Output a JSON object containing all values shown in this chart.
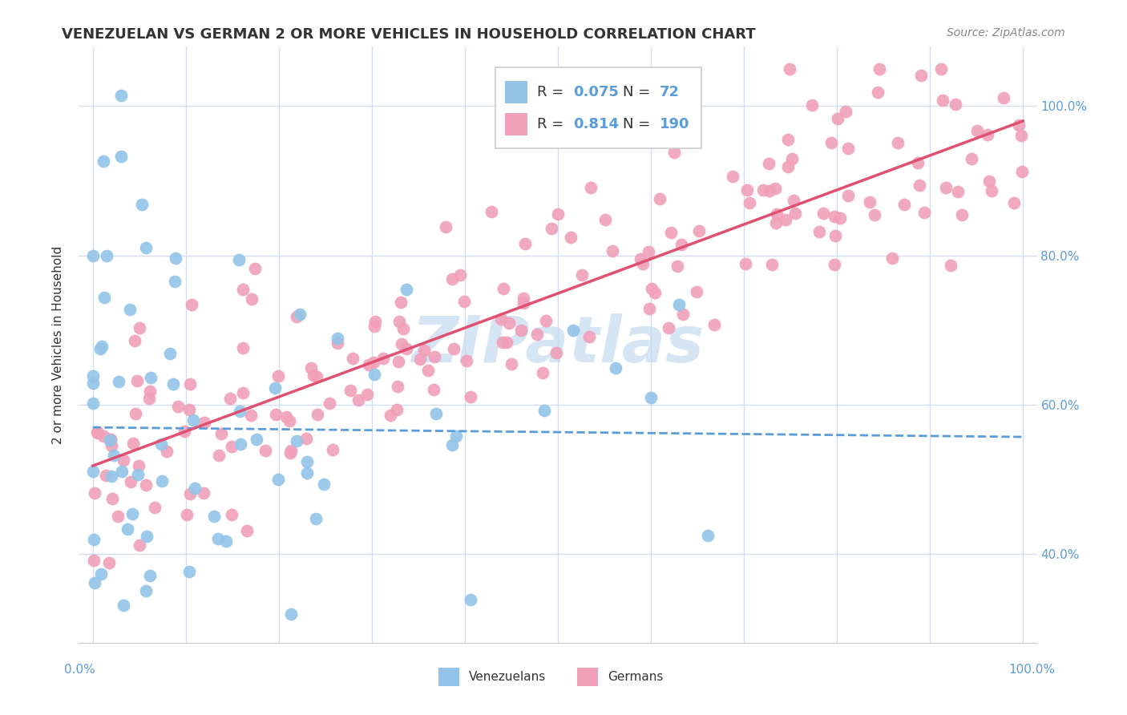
{
  "title": "VENEZUELAN VS GERMAN 2 OR MORE VEHICLES IN HOUSEHOLD CORRELATION CHART",
  "source": "Source: ZipAtlas.com",
  "ylabel": "2 or more Vehicles in Household",
  "venezuelan_color": "#93c4e8",
  "german_color": "#f0a0b8",
  "venezuelan_line_color": "#5b9dd9",
  "german_line_color": "#e05070",
  "venezuelan_R": 0.075,
  "venezuelan_N": 72,
  "german_R": 0.814,
  "german_N": 190,
  "background_color": "#ffffff",
  "grid_color": "#d5dded",
  "text_color": "#333333",
  "blue_label_color": "#5b9dd9",
  "watermark_color": "#c5daf0",
  "title_fontsize": 13,
  "axis_fontsize": 11,
  "legend_fontsize": 13
}
